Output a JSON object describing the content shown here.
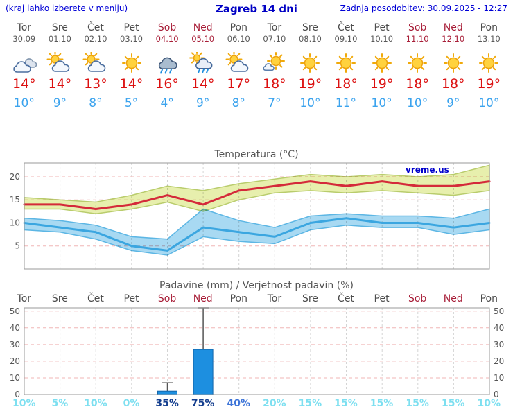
{
  "header": {
    "left_note": "(kraj lahko izberete v meniju)",
    "title": "Zagreb 14 dni",
    "updated": "Zadnja posodobitev: 30.09.2025 - 12:27"
  },
  "colors": {
    "header_blue": "#0000d6",
    "weekend_red": "#a81e38",
    "high_temp_red": "#dc1010",
    "low_temp_blue": "#3ba3ee",
    "grid_pink": "#f0b6b6",
    "grid_gray": "#d4d4d4",
    "frame_gray": "#9a9a9a",
    "axis_text": "#555555",
    "watermark_blue": "#0000cc"
  },
  "prob_colors": {
    "low": "#7ddff0",
    "mid": "#3d74d8",
    "high": "#143e8e"
  },
  "days": [
    {
      "name": "Tor",
      "date": "30.09",
      "weekend": false,
      "icon": "cloudy",
      "high": "14°",
      "low": "10°"
    },
    {
      "name": "Sre",
      "date": "01.10",
      "weekend": false,
      "icon": "partly",
      "high": "14°",
      "low": "9°"
    },
    {
      "name": "Čet",
      "date": "02.10",
      "weekend": false,
      "icon": "partly",
      "high": "13°",
      "low": "8°"
    },
    {
      "name": "Pet",
      "date": "03.10",
      "weekend": false,
      "icon": "sunny",
      "high": "14°",
      "low": "5°"
    },
    {
      "name": "Sob",
      "date": "04.10",
      "weekend": true,
      "icon": "rain",
      "high": "16°",
      "low": "4°"
    },
    {
      "name": "Ned",
      "date": "05.10",
      "weekend": true,
      "icon": "rainsun",
      "high": "14°",
      "low": "9°"
    },
    {
      "name": "Pon",
      "date": "06.10",
      "weekend": false,
      "icon": "partly",
      "high": "17°",
      "low": "8°"
    },
    {
      "name": "Tor",
      "date": "07.10",
      "weekend": false,
      "icon": "mostly-sunny",
      "high": "18°",
      "low": "7°"
    },
    {
      "name": "Sre",
      "date": "08.10",
      "weekend": false,
      "icon": "sunny",
      "high": "19°",
      "low": "10°"
    },
    {
      "name": "Čet",
      "date": "09.10",
      "weekend": false,
      "icon": "sunny",
      "high": "18°",
      "low": "11°"
    },
    {
      "name": "Pet",
      "date": "10.10",
      "weekend": false,
      "icon": "sunny",
      "high": "19°",
      "low": "10°"
    },
    {
      "name": "Sob",
      "date": "11.10",
      "weekend": true,
      "icon": "sunny",
      "high": "18°",
      "low": "10°"
    },
    {
      "name": "Ned",
      "date": "12.10",
      "weekend": true,
      "icon": "sunny",
      "high": "18°",
      "low": "9°"
    },
    {
      "name": "Pon",
      "date": "13.10",
      "weekend": false,
      "icon": "sunny",
      "high": "19°",
      "low": "10°"
    }
  ],
  "chart_data": [
    {
      "type": "line",
      "title": "Temperatura (°C)",
      "watermark": "vreme.us",
      "categories": [
        "Tor 30.09",
        "Sre 01.10",
        "Čet 02.10",
        "Pet 03.10",
        "Sob 04.10",
        "Ned 05.10",
        "Pon 06.10",
        "Tor 07.10",
        "Sre 08.10",
        "Čet 09.10",
        "Pet 10.10",
        "Sob 11.10",
        "Ned 12.10",
        "Pon 13.10"
      ],
      "ylim": [
        0,
        23
      ],
      "yticks": [
        5,
        10,
        15,
        20
      ],
      "series": [
        {
          "name": "max-temperature",
          "color": "#d42a3a",
          "values": [
            14,
            14,
            13,
            14,
            16,
            14,
            17,
            18,
            19,
            18,
            19,
            18,
            18,
            19
          ],
          "band_upper": [
            15.5,
            15,
            14.5,
            16,
            18,
            17,
            18.5,
            19.5,
            20.5,
            20,
            20.5,
            20,
            20.5,
            22.5
          ],
          "band_lower": [
            13,
            13,
            12,
            13,
            14.5,
            12.5,
            15,
            16.5,
            17,
            16.5,
            17,
            16.5,
            16,
            17
          ],
          "band_fill": "#e7efad",
          "band_edge": "#b9cc6c"
        },
        {
          "name": "min-temperature",
          "color": "#3ba6e0",
          "values": [
            10,
            9,
            8,
            5,
            4,
            9,
            8,
            7,
            10,
            11,
            10,
            10,
            9,
            10
          ],
          "band_upper": [
            11,
            10.5,
            9.5,
            7,
            6.5,
            13,
            10.5,
            9,
            11.5,
            12,
            11.5,
            11.5,
            11,
            13
          ],
          "band_lower": [
            8.5,
            8,
            6.5,
            4,
            3,
            7,
            6,
            5.5,
            8.5,
            9.5,
            9,
            9,
            7.5,
            8.5
          ],
          "band_fill": "#a8d9f2",
          "band_edge": "#5cb6e4"
        }
      ]
    },
    {
      "type": "bar",
      "title": "Padavine (mm) / Verjetnost padavin (%)",
      "categories": [
        "Tor",
        "Sre",
        "Čet",
        "Pet",
        "Sob",
        "Ned",
        "Pon",
        "Tor",
        "Sre",
        "Čet",
        "Pet",
        "Sob",
        "Ned",
        "Pon"
      ],
      "weekend_flags": [
        false,
        false,
        false,
        false,
        true,
        true,
        false,
        false,
        false,
        false,
        false,
        true,
        true,
        false
      ],
      "values": [
        0,
        0,
        0,
        0,
        2,
        27,
        0,
        0,
        0,
        0,
        0,
        0,
        0,
        0
      ],
      "whiskers": [
        0,
        0,
        0,
        0,
        7,
        52,
        0,
        0,
        0,
        0,
        0,
        0,
        0,
        0
      ],
      "ylim": [
        0,
        52
      ],
      "yticks": [
        0,
        10,
        20,
        30,
        40,
        50
      ],
      "bar_color": "#1d8fe0",
      "bar_edge": "#1366ab",
      "probabilities": [
        {
          "label": "10%",
          "level": "low"
        },
        {
          "label": "5%",
          "level": "low"
        },
        {
          "label": "10%",
          "level": "low"
        },
        {
          "label": "0%",
          "level": "low"
        },
        {
          "label": "35%",
          "level": "high"
        },
        {
          "label": "75%",
          "level": "high"
        },
        {
          "label": "40%",
          "level": "mid"
        },
        {
          "label": "20%",
          "level": "low"
        },
        {
          "label": "15%",
          "level": "low"
        },
        {
          "label": "15%",
          "level": "low"
        },
        {
          "label": "15%",
          "level": "low"
        },
        {
          "label": "15%",
          "level": "low"
        },
        {
          "label": "15%",
          "level": "low"
        },
        {
          "label": "10%",
          "level": "low"
        }
      ]
    }
  ]
}
